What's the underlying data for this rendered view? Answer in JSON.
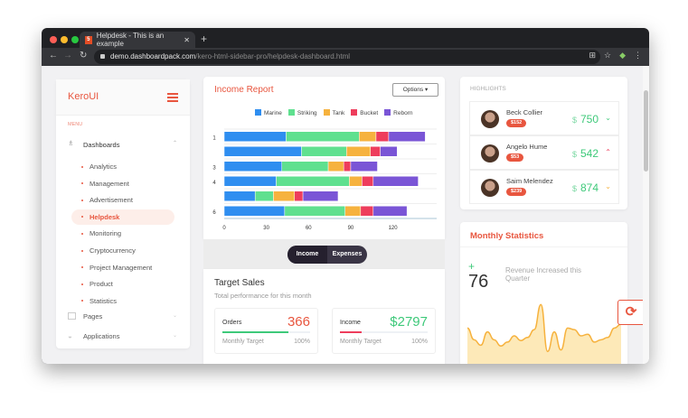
{
  "browser": {
    "tab_title": "Helpdesk - This is an example",
    "url_domain": "demo.dashboardpack.com",
    "url_path": "/kero-html-sidebar-pro/helpdesk-dashboard.html"
  },
  "sidebar": {
    "logo": "KeroUI",
    "menu_label": "MENU",
    "group": "Dashboards",
    "items": [
      {
        "label": "Analytics"
      },
      {
        "label": "Management"
      },
      {
        "label": "Advertisement"
      },
      {
        "label": "Helpdesk",
        "active": true
      },
      {
        "label": "Monitoring"
      },
      {
        "label": "Cryptocurrency"
      },
      {
        "label": "Project Management"
      },
      {
        "label": "Product"
      },
      {
        "label": "Statistics"
      }
    ],
    "sections": [
      "Pages",
      "Applications"
    ]
  },
  "income_report": {
    "title": "Income Report",
    "options_label": "Options",
    "toggle": [
      "Income",
      "Expenses"
    ],
    "active_toggle": "Income"
  },
  "chart_data": {
    "type": "bar",
    "orientation": "horizontal",
    "stacked": true,
    "categories": [
      "1",
      "",
      "3",
      "4",
      "",
      "6"
    ],
    "series": [
      {
        "name": "Marine",
        "color": "#2f8ef0",
        "values": [
          44,
          55,
          41,
          37,
          22,
          43
        ]
      },
      {
        "name": "Striking",
        "color": "#5fe08f",
        "values": [
          52,
          32,
          33,
          52,
          13,
          43
        ]
      },
      {
        "name": "Tank",
        "color": "#f6b23e",
        "values": [
          12,
          17,
          11,
          9,
          15,
          11
        ]
      },
      {
        "name": "Bucket",
        "color": "#ee3d5c",
        "values": [
          9,
          7,
          5,
          8,
          6,
          9
        ]
      },
      {
        "name": "Reborn",
        "color": "#7a55d6",
        "values": [
          26,
          12,
          19,
          32,
          25,
          24
        ]
      }
    ],
    "x_ticks": [
      "0",
      "30",
      "60",
      "90",
      "120"
    ],
    "xlim": [
      0,
      150
    ],
    "grid": true,
    "legend": "top"
  },
  "target_sales": {
    "title": "Target Sales",
    "subtitle": "Total performance for this month",
    "orders": {
      "label": "Orders",
      "value": "366",
      "sub": "Monthly Target",
      "pct": "100%",
      "progress": 0.75
    },
    "income": {
      "label": "Income",
      "value": "$2797",
      "sub": "Monthly Target",
      "pct": "100%",
      "progress": 0.25
    }
  },
  "highlights": {
    "title": "HIGHLIGHTS",
    "rows": [
      {
        "name": "Beck Collier",
        "badge": "$152",
        "currency": "$",
        "amount": "750",
        "trend": "down",
        "trend_color": "#3ec97a"
      },
      {
        "name": "Angelo Hume",
        "badge": "$53",
        "currency": "$",
        "amount": "542",
        "trend": "up",
        "trend_color": "#ee3d5c"
      },
      {
        "name": "Saim Melendez",
        "badge": "$239",
        "currency": "$",
        "amount": "874",
        "trend": "down",
        "trend_color": "#f6b23e"
      }
    ]
  },
  "monthly": {
    "title": "Monthly Statistics",
    "sign": "+",
    "value": "76",
    "caption": "Revenue Increased this Quarter",
    "sparkline": [
      40,
      25,
      18,
      35,
      25,
      17,
      22,
      30,
      24,
      28,
      38,
      70,
      10,
      35,
      12,
      40,
      38,
      30,
      32,
      22,
      25,
      28,
      40,
      45
    ]
  },
  "colors": {
    "accent": "#e8563f",
    "green": "#3ec97a"
  }
}
